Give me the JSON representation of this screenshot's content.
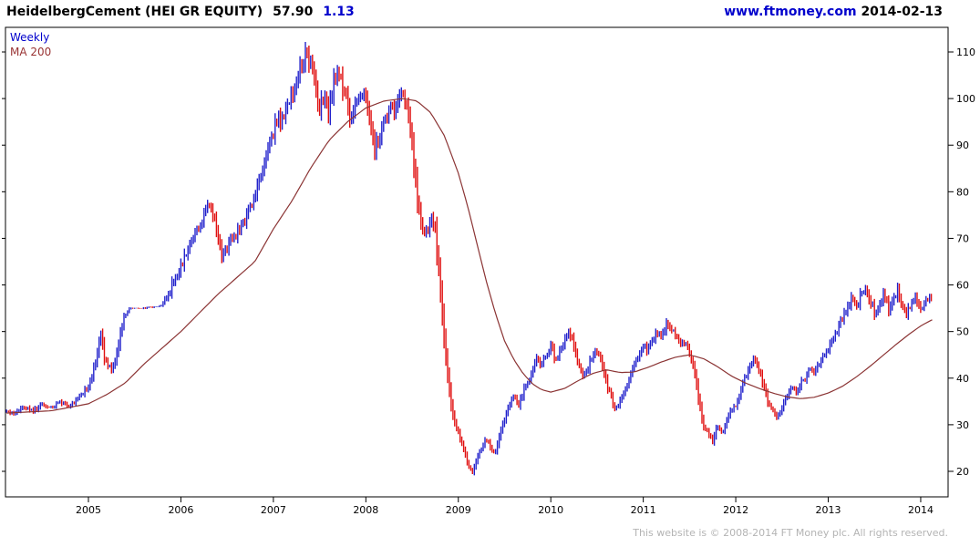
{
  "header": {
    "title": "HeidelbergCement (HEI GR EQUITY)",
    "price": "57.90",
    "change": "1.13",
    "site": "www.ftmoney.com",
    "date": "2014-02-13"
  },
  "legend": {
    "weekly": "Weekly",
    "ma200": "MA 200"
  },
  "footer": {
    "copyright": "This website is © 2008-2014 FT Money plc. All rights reserved."
  },
  "chart_data": {
    "type": "ohlc_weekly_bars_with_ma_line",
    "title": "HeidelbergCement (HEI GR EQUITY) weekly price with 200 moving average",
    "last_price": 57.9,
    "change": 1.13,
    "x_ticks": [
      2005,
      2006,
      2007,
      2008,
      2009,
      2010,
      2011,
      2012,
      2013,
      2014
    ],
    "x_range": [
      2004.115,
      2014.125
    ],
    "y_ticks": [
      20,
      30,
      40,
      50,
      60,
      70,
      80,
      90,
      100,
      110
    ],
    "y_range": [
      14.5,
      115.3
    ],
    "legend_position": "top-left",
    "grid": false,
    "colors": {
      "up": "#2222cc",
      "down": "#e01010",
      "ma": "#8b3434",
      "axis": "#000000",
      "background": "#ffffff"
    },
    "quiet_periods": [
      [
        2005.36,
        2005.82
      ]
    ],
    "price_close_anchors": [
      [
        2004.12,
        33
      ],
      [
        2004.2,
        32.2
      ],
      [
        2004.3,
        34
      ],
      [
        2004.4,
        33
      ],
      [
        2004.5,
        34.5
      ],
      [
        2004.6,
        33.5
      ],
      [
        2004.7,
        35
      ],
      [
        2004.8,
        34
      ],
      [
        2004.9,
        36
      ],
      [
        2005.0,
        38
      ],
      [
        2005.08,
        44
      ],
      [
        2005.13,
        49.5
      ],
      [
        2005.18,
        44
      ],
      [
        2005.25,
        42
      ],
      [
        2005.32,
        46
      ],
      [
        2005.38,
        53
      ],
      [
        2005.45,
        55
      ],
      [
        2005.6,
        55
      ],
      [
        2005.78,
        55.5
      ],
      [
        2005.85,
        57.5
      ],
      [
        2005.92,
        60.5
      ],
      [
        2006.0,
        64
      ],
      [
        2006.1,
        69
      ],
      [
        2006.2,
        73
      ],
      [
        2006.3,
        77
      ],
      [
        2006.37,
        73.5
      ],
      [
        2006.45,
        66
      ],
      [
        2006.52,
        69
      ],
      [
        2006.6,
        71
      ],
      [
        2006.7,
        74
      ],
      [
        2006.8,
        79
      ],
      [
        2006.9,
        85
      ],
      [
        2007.0,
        93
      ],
      [
        2007.05,
        96
      ],
      [
        2007.1,
        95
      ],
      [
        2007.15,
        99
      ],
      [
        2007.2,
        101
      ],
      [
        2007.25,
        104
      ],
      [
        2007.3,
        107
      ],
      [
        2007.35,
        110
      ],
      [
        2007.4,
        108
      ],
      [
        2007.45,
        103
      ],
      [
        2007.5,
        98
      ],
      [
        2007.55,
        101
      ],
      [
        2007.6,
        97
      ],
      [
        2007.65,
        103
      ],
      [
        2007.7,
        105
      ],
      [
        2007.75,
        103
      ],
      [
        2007.8,
        99
      ],
      [
        2007.85,
        95
      ],
      [
        2007.9,
        100
      ],
      [
        2007.95,
        102
      ],
      [
        2008.0,
        100
      ],
      [
        2008.05,
        94
      ],
      [
        2008.1,
        89
      ],
      [
        2008.15,
        92
      ],
      [
        2008.2,
        95
      ],
      [
        2008.25,
        98
      ],
      [
        2008.3,
        97
      ],
      [
        2008.35,
        100
      ],
      [
        2008.4,
        101
      ],
      [
        2008.45,
        99
      ],
      [
        2008.5,
        90
      ],
      [
        2008.55,
        80
      ],
      [
        2008.6,
        73
      ],
      [
        2008.65,
        71
      ],
      [
        2008.7,
        74
      ],
      [
        2008.75,
        72
      ],
      [
        2008.8,
        60
      ],
      [
        2008.85,
        48
      ],
      [
        2008.9,
        38
      ],
      [
        2008.95,
        31
      ],
      [
        2009.0,
        28
      ],
      [
        2009.05,
        25
      ],
      [
        2009.1,
        22
      ],
      [
        2009.15,
        19.5
      ],
      [
        2009.2,
        23
      ],
      [
        2009.25,
        24.5
      ],
      [
        2009.3,
        27
      ],
      [
        2009.35,
        25
      ],
      [
        2009.4,
        24
      ],
      [
        2009.45,
        28
      ],
      [
        2009.5,
        31
      ],
      [
        2009.55,
        34
      ],
      [
        2009.6,
        36
      ],
      [
        2009.65,
        34
      ],
      [
        2009.7,
        37
      ],
      [
        2009.75,
        39
      ],
      [
        2009.8,
        42
      ],
      [
        2009.85,
        44
      ],
      [
        2009.9,
        43
      ],
      [
        2009.95,
        45
      ],
      [
        2010.0,
        47
      ],
      [
        2010.05,
        44
      ],
      [
        2010.1,
        46
      ],
      [
        2010.15,
        48
      ],
      [
        2010.2,
        50
      ],
      [
        2010.25,
        47
      ],
      [
        2010.3,
        43
      ],
      [
        2010.35,
        40
      ],
      [
        2010.4,
        42
      ],
      [
        2010.45,
        45
      ],
      [
        2010.5,
        46
      ],
      [
        2010.55,
        43
      ],
      [
        2010.6,
        39
      ],
      [
        2010.65,
        36
      ],
      [
        2010.7,
        33
      ],
      [
        2010.75,
        35
      ],
      [
        2010.8,
        37
      ],
      [
        2010.85,
        40
      ],
      [
        2010.9,
        43
      ],
      [
        2010.95,
        45
      ],
      [
        2011.0,
        47
      ],
      [
        2011.05,
        46
      ],
      [
        2011.1,
        48
      ],
      [
        2011.15,
        50
      ],
      [
        2011.2,
        49
      ],
      [
        2011.25,
        52
      ],
      [
        2011.3,
        51
      ],
      [
        2011.35,
        49
      ],
      [
        2011.4,
        47
      ],
      [
        2011.45,
        48
      ],
      [
        2011.5,
        45
      ],
      [
        2011.55,
        42
      ],
      [
        2011.6,
        35
      ],
      [
        2011.65,
        30
      ],
      [
        2011.7,
        28
      ],
      [
        2011.75,
        26.5
      ],
      [
        2011.8,
        30
      ],
      [
        2011.85,
        28
      ],
      [
        2011.9,
        31
      ],
      [
        2011.95,
        33
      ],
      [
        2012.0,
        34
      ],
      [
        2012.05,
        37
      ],
      [
        2012.1,
        40
      ],
      [
        2012.15,
        42
      ],
      [
        2012.2,
        44
      ],
      [
        2012.25,
        42
      ],
      [
        2012.3,
        38
      ],
      [
        2012.35,
        35
      ],
      [
        2012.4,
        33
      ],
      [
        2012.45,
        31.5
      ],
      [
        2012.5,
        34
      ],
      [
        2012.55,
        36
      ],
      [
        2012.6,
        38
      ],
      [
        2012.65,
        37
      ],
      [
        2012.7,
        39
      ],
      [
        2012.75,
        40
      ],
      [
        2012.8,
        42
      ],
      [
        2012.85,
        41
      ],
      [
        2012.9,
        43
      ],
      [
        2012.95,
        45
      ],
      [
        2013.0,
        46
      ],
      [
        2013.05,
        48
      ],
      [
        2013.1,
        50
      ],
      [
        2013.15,
        53
      ],
      [
        2013.2,
        55
      ],
      [
        2013.25,
        57
      ],
      [
        2013.3,
        55
      ],
      [
        2013.35,
        58
      ],
      [
        2013.4,
        59.5
      ],
      [
        2013.45,
        57
      ],
      [
        2013.5,
        54
      ],
      [
        2013.55,
        56
      ],
      [
        2013.6,
        58
      ],
      [
        2013.65,
        55
      ],
      [
        2013.7,
        57
      ],
      [
        2013.75,
        58.5
      ],
      [
        2013.8,
        56
      ],
      [
        2013.85,
        54
      ],
      [
        2013.9,
        56
      ],
      [
        2013.95,
        57
      ],
      [
        2014.0,
        55
      ],
      [
        2014.05,
        56.5
      ],
      [
        2014.12,
        57.9
      ]
    ],
    "ma_anchors": [
      [
        2004.12,
        32.5
      ],
      [
        2004.6,
        33
      ],
      [
        2005.0,
        34.5
      ],
      [
        2005.2,
        36.5
      ],
      [
        2005.4,
        39
      ],
      [
        2005.6,
        43
      ],
      [
        2005.8,
        46.5
      ],
      [
        2006.0,
        50
      ],
      [
        2006.2,
        54
      ],
      [
        2006.4,
        58
      ],
      [
        2006.6,
        61.5
      ],
      [
        2006.8,
        65
      ],
      [
        2007.0,
        72
      ],
      [
        2007.2,
        78
      ],
      [
        2007.4,
        85
      ],
      [
        2007.6,
        91
      ],
      [
        2007.8,
        95
      ],
      [
        2008.0,
        98
      ],
      [
        2008.2,
        99.5
      ],
      [
        2008.4,
        100
      ],
      [
        2008.55,
        99.5
      ],
      [
        2008.7,
        97
      ],
      [
        2008.85,
        92
      ],
      [
        2009.0,
        84
      ],
      [
        2009.1,
        77
      ],
      [
        2009.2,
        69
      ],
      [
        2009.3,
        61
      ],
      [
        2009.4,
        54
      ],
      [
        2009.5,
        48
      ],
      [
        2009.6,
        44
      ],
      [
        2009.7,
        41
      ],
      [
        2009.8,
        38.8
      ],
      [
        2009.9,
        37.5
      ],
      [
        2010.0,
        37
      ],
      [
        2010.15,
        37.8
      ],
      [
        2010.3,
        39.5
      ],
      [
        2010.45,
        41
      ],
      [
        2010.6,
        41.8
      ],
      [
        2010.75,
        41.2
      ],
      [
        2010.9,
        41.3
      ],
      [
        2011.05,
        42.3
      ],
      [
        2011.2,
        43.5
      ],
      [
        2011.35,
        44.5
      ],
      [
        2011.5,
        45
      ],
      [
        2011.65,
        44.2
      ],
      [
        2011.8,
        42.5
      ],
      [
        2011.95,
        40.5
      ],
      [
        2012.1,
        39
      ],
      [
        2012.25,
        37.8
      ],
      [
        2012.4,
        36.8
      ],
      [
        2012.55,
        36
      ],
      [
        2012.7,
        35.6
      ],
      [
        2012.85,
        35.9
      ],
      [
        2013.0,
        36.8
      ],
      [
        2013.15,
        38.2
      ],
      [
        2013.3,
        40.2
      ],
      [
        2013.45,
        42.5
      ],
      [
        2013.6,
        45
      ],
      [
        2013.75,
        47.5
      ],
      [
        2013.9,
        49.8
      ],
      [
        2014.0,
        51.2
      ],
      [
        2014.12,
        52.5
      ]
    ]
  }
}
